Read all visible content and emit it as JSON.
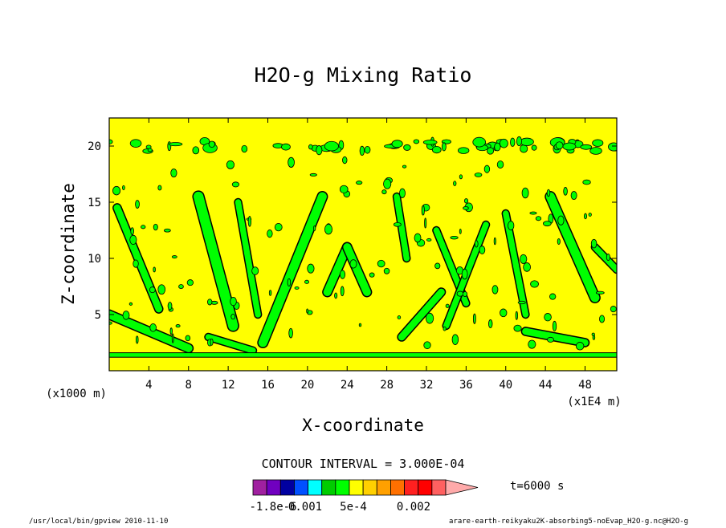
{
  "chart_data": {
    "type": "heatmap",
    "title": "H2O-g Mixing Ratio",
    "xlabel": "X-coordinate",
    "ylabel": "Z-coordinate",
    "x_unit": "(x1E4 m)",
    "y_unit": "(x1000 m)",
    "xlim": [
      0,
      51.2
    ],
    "ylim": [
      0,
      22.5
    ],
    "x_ticks": [
      4,
      8,
      12,
      16,
      20,
      24,
      28,
      32,
      36,
      40,
      44,
      48
    ],
    "x_tick_labels": [
      "4",
      "8",
      "12",
      "16",
      "20",
      "24",
      "28",
      "32",
      "36",
      "40",
      "44",
      "48"
    ],
    "y_ticks": [
      5,
      10,
      15,
      20
    ],
    "y_tick_labels": [
      "5",
      "10",
      "15",
      "20"
    ],
    "background_level_color": "#ffff00",
    "contour_level_color": "#00ff00",
    "green_bands": [
      {
        "x0": 0.0,
        "z0": 5.0,
        "x1": 8.0,
        "z1": 2.0,
        "w": 0.8
      },
      {
        "x0": 0.8,
        "z0": 14.5,
        "x1": 5.0,
        "z1": 5.5,
        "w": 0.7
      },
      {
        "x0": 9.0,
        "z0": 15.5,
        "x1": 12.5,
        "z1": 4.0,
        "w": 1.0
      },
      {
        "x0": 13.0,
        "z0": 15.0,
        "x1": 15.0,
        "z1": 5.0,
        "w": 0.6
      },
      {
        "x0": 10.0,
        "z0": 3.0,
        "x1": 14.5,
        "z1": 1.8,
        "w": 0.6
      },
      {
        "x0": 21.5,
        "z0": 15.5,
        "x1": 15.5,
        "z1": 2.5,
        "w": 0.9
      },
      {
        "x0": 24.0,
        "z0": 11.0,
        "x1": 22.0,
        "z1": 7.0,
        "w": 0.8
      },
      {
        "x0": 24.0,
        "z0": 11.0,
        "x1": 26.0,
        "z1": 7.0,
        "w": 0.8
      },
      {
        "x0": 29.0,
        "z0": 15.5,
        "x1": 30.0,
        "z1": 10.0,
        "w": 0.6
      },
      {
        "x0": 29.5,
        "z0": 3.0,
        "x1": 33.5,
        "z1": 7.0,
        "w": 0.7
      },
      {
        "x0": 33.0,
        "z0": 12.5,
        "x1": 36.0,
        "z1": 6.0,
        "w": 0.6
      },
      {
        "x0": 34.0,
        "z0": 4.0,
        "x1": 38.0,
        "z1": 13.0,
        "w": 0.6
      },
      {
        "x0": 40.0,
        "z0": 14.0,
        "x1": 42.0,
        "z1": 5.0,
        "w": 0.6
      },
      {
        "x0": 44.5,
        "z0": 15.5,
        "x1": 49.0,
        "z1": 6.5,
        "w": 0.9
      },
      {
        "x0": 42.0,
        "z0": 3.5,
        "x1": 48.0,
        "z1": 2.5,
        "w": 0.7
      },
      {
        "x0": 49.0,
        "z0": 11.0,
        "x1": 51.2,
        "z1": 9.0,
        "w": 0.6
      }
    ],
    "near_surface_band_z": [
      1.2,
      1.6
    ],
    "top_band_z": 20.0
  },
  "legend": {
    "contour_interval_text": "CONTOUR INTERVAL = 3.000E-04",
    "colors": [
      "#a020a0",
      "#7000c0",
      "#0000a0",
      "#0050ff",
      "#00ffff",
      "#00cc00",
      "#00ff00",
      "#ffff00",
      "#ffd000",
      "#ffa000",
      "#ff7000",
      "#ff2020",
      "#ff0000",
      "#ff6060",
      "#ffaaaa"
    ],
    "labels": [
      "-1.8e-6",
      "0.001",
      "5e-4",
      "0.002"
    ],
    "time_label": "t=6000 s"
  },
  "footer": {
    "left": "/usr/local/bin/gpview  2010-11-10",
    "right": "arare-earth-reikyaku2K-absorbing5-noEvap_H2O-g.nc@H2O-g"
  }
}
